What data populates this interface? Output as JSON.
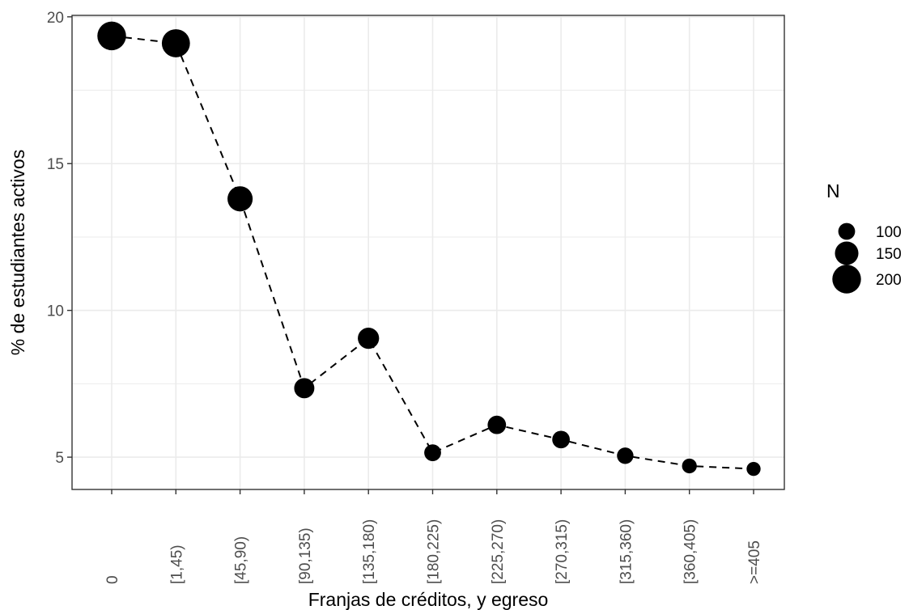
{
  "chart_data": {
    "type": "scatter",
    "categories": [
      "0",
      "[1,45)",
      "[45,90)",
      "[90,135)",
      "[135,180)",
      "[180,225)",
      "[225,270)",
      "[270,315)",
      "[315,360)",
      "[360,405)",
      ">=405"
    ],
    "series": [
      {
        "values": [
          19.35,
          19.1,
          13.8,
          7.35,
          9.05,
          5.15,
          6.1,
          5.6,
          5.05,
          4.7,
          4.6
        ],
        "sizes": [
          218,
          210,
          168,
          108,
          120,
          75,
          90,
          82,
          72,
          58,
          52
        ]
      }
    ],
    "connector": "dashed line",
    "xlabel": "Franjas de créditos, y egreso",
    "ylabel": "% de estudiantes activos",
    "ylim": [
      3.9,
      20.05
    ],
    "yticks": [
      5,
      10,
      15,
      20
    ],
    "grid": true,
    "legend": {
      "title": "N",
      "placement": "right",
      "entries": [
        {
          "label": "100",
          "value": 100
        },
        {
          "label": "150",
          "value": 150
        },
        {
          "label": "200",
          "value": 200
        }
      ]
    },
    "colors": {
      "points": "#000000",
      "grid": "#ebebeb",
      "panel_border": "#333333"
    }
  }
}
